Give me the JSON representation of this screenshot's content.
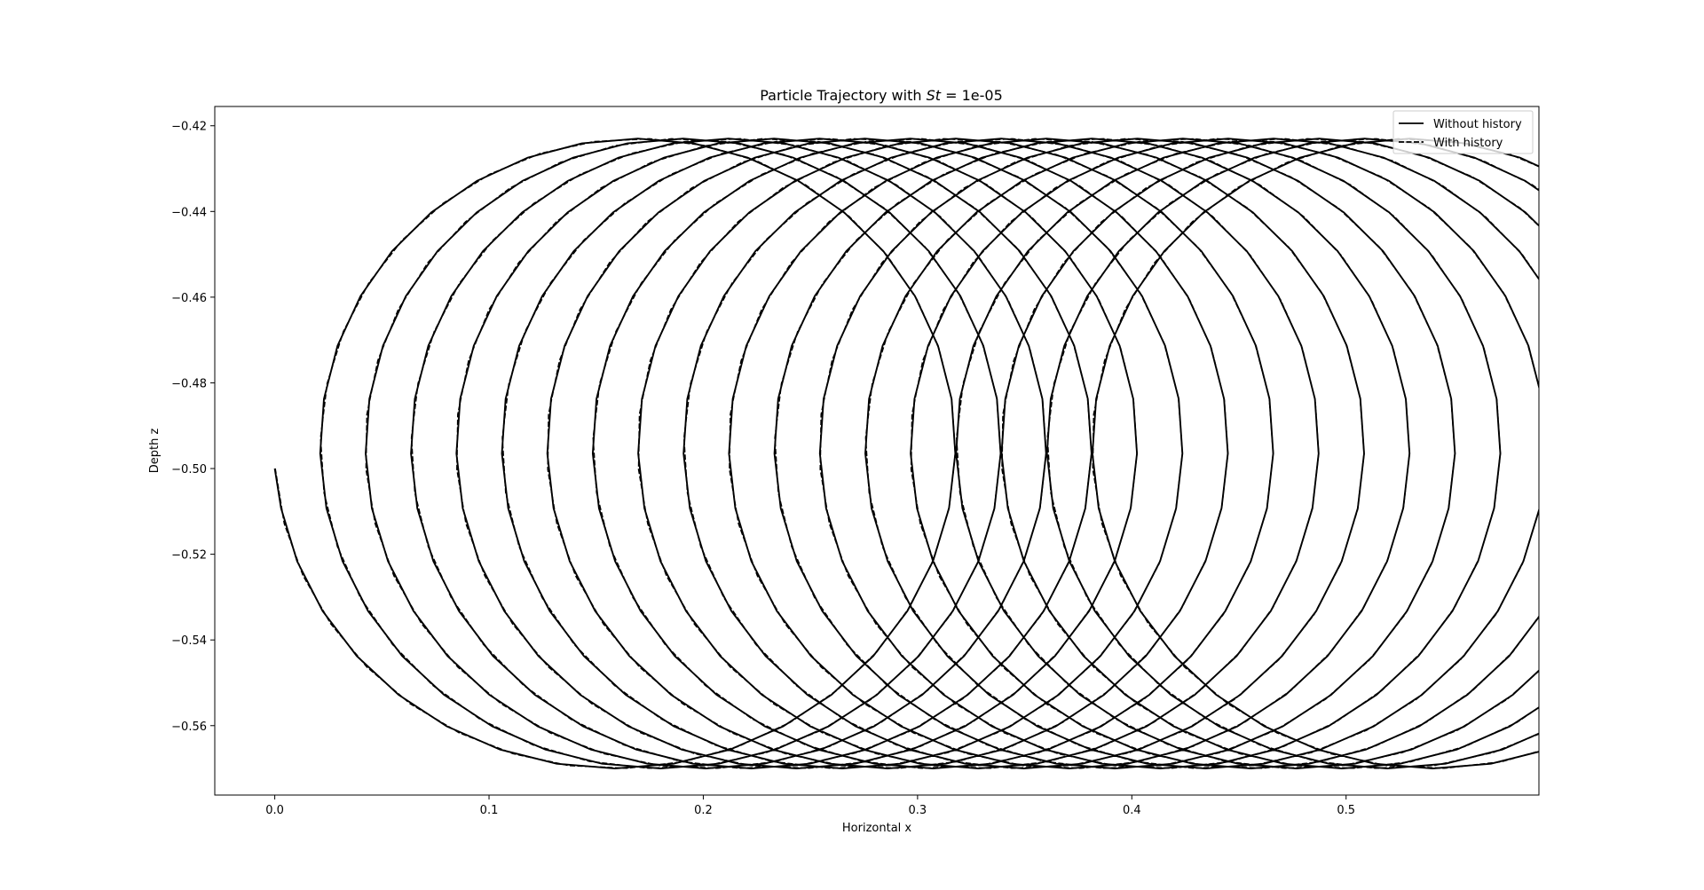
{
  "chart_data": {
    "type": "line",
    "title": "Particle Trajectory with St = 1e-05",
    "title_prefix": "Particle Trajectory with ",
    "title_symbol": "St",
    "title_suffix": " = 1e-05",
    "xlabel": "Horizontal x",
    "ylabel": "Depth z",
    "xlim": [
      -0.028,
      0.59
    ],
    "ylim": [
      -0.5762,
      -0.4155
    ],
    "xticks": [
      0.0,
      0.1,
      0.2,
      0.3,
      0.4,
      0.5
    ],
    "xtick_labels": [
      "0.0",
      "0.1",
      "0.2",
      "0.3",
      "0.4",
      "0.5"
    ],
    "yticks": [
      -0.42,
      -0.44,
      -0.46,
      -0.48,
      -0.5,
      -0.52,
      -0.54,
      -0.56
    ],
    "ytick_labels": [
      "−0.42",
      "−0.44",
      "−0.46",
      "−0.48",
      "−0.50",
      "−0.52",
      "−0.54",
      "−0.56"
    ],
    "grid": false,
    "legend_position": "top-right",
    "orbit": {
      "center_z": -0.4965,
      "amplitude_x": 0.1535,
      "amplitude_z": 0.0735,
      "drift_per_cycle": 0.0212,
      "cycles": 18.3,
      "samples_per_cycle": 36,
      "start": [
        0.0,
        -0.5
      ]
    },
    "series": [
      {
        "name": "Without history",
        "style": "solid",
        "color": "#000000",
        "phase_shift": 0.0
      },
      {
        "name": "With history",
        "style": "dashed",
        "color": "#000000",
        "phase_shift": 0.05
      }
    ]
  }
}
